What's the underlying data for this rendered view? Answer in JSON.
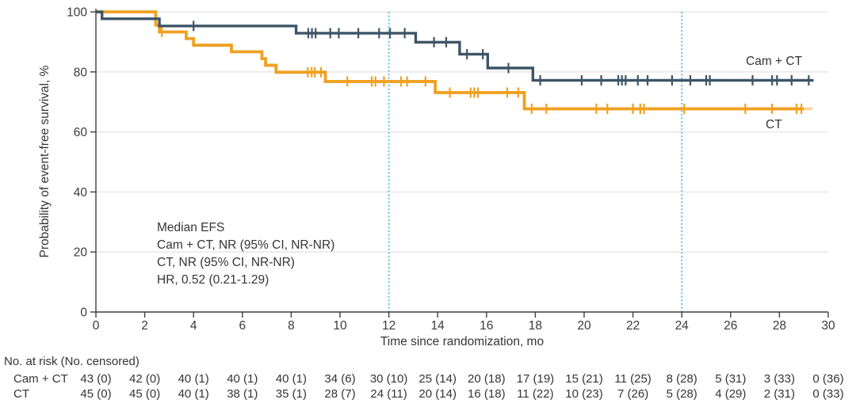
{
  "figure": {
    "curve_label_cam": "Cam + CT",
    "curve_label_ct": "CT"
  },
  "chart_data": {
    "type": "line",
    "subtype": "kaplan-meier-step",
    "title": "",
    "xlabel": "Time since randomization, mo",
    "ylabel": "Probability of event-free survival, %",
    "xlim": [
      0,
      30
    ],
    "ylim": [
      0,
      100
    ],
    "xticks": [
      0,
      2,
      4,
      6,
      8,
      10,
      12,
      14,
      16,
      18,
      20,
      22,
      24,
      26,
      28,
      30
    ],
    "yticks": [
      0,
      20,
      40,
      60,
      80,
      100
    ],
    "grid": "horizontal light lines at 20,40,60,80,100",
    "reference_lines_x": [
      12,
      24
    ],
    "colors": {
      "cam_ct": "#3D5567",
      "ct": "#F0A122",
      "reference": "#58C4E9",
      "grid": "#E4E4E4",
      "axis": "#3F3F3F",
      "text": "#353535"
    },
    "series": [
      {
        "name": "CT",
        "color": "#F0A122",
        "stroke_width": 3.8,
        "end_time": 29.0,
        "fade_tail_to": 29.35,
        "steps": [
          [
            0,
            100
          ],
          [
            2.45,
            95.6
          ],
          [
            2.6,
            93.3
          ],
          [
            3.7,
            91.1
          ],
          [
            4.0,
            88.9
          ],
          [
            5.55,
            86.7
          ],
          [
            6.8,
            84.4
          ],
          [
            6.95,
            82.2
          ],
          [
            7.38,
            79.9
          ],
          [
            9.4,
            76.8
          ],
          [
            13.9,
            73.1
          ],
          [
            17.55,
            67.7
          ]
        ],
        "censors": [
          [
            2.7,
            93.3
          ],
          [
            8.68,
            79.9
          ],
          [
            8.84,
            79.9
          ],
          [
            8.97,
            79.9
          ],
          [
            9.22,
            79.9
          ],
          [
            10.3,
            76.8
          ],
          [
            11.3,
            76.8
          ],
          [
            11.45,
            76.8
          ],
          [
            11.8,
            76.8
          ],
          [
            12.5,
            76.8
          ],
          [
            12.75,
            76.8
          ],
          [
            13.5,
            76.8
          ],
          [
            14.5,
            73.1
          ],
          [
            15.35,
            73.1
          ],
          [
            15.5,
            73.1
          ],
          [
            15.65,
            73.1
          ],
          [
            16.85,
            73.1
          ],
          [
            17.3,
            73.1
          ],
          [
            17.85,
            67.7
          ],
          [
            18.45,
            67.7
          ],
          [
            20.5,
            67.7
          ],
          [
            20.95,
            67.7
          ],
          [
            22.0,
            67.7
          ],
          [
            22.3,
            67.7
          ],
          [
            22.45,
            67.7
          ],
          [
            24.1,
            67.7
          ],
          [
            26.6,
            67.7
          ],
          [
            27.7,
            67.7
          ],
          [
            28.7,
            67.7
          ],
          [
            28.9,
            67.7
          ]
        ]
      },
      {
        "name": "Cam + CT",
        "color": "#3D5567",
        "stroke_width": 3.4,
        "end_time": 29.4,
        "fade_tail_to": null,
        "steps": [
          [
            0,
            100
          ],
          [
            0.25,
            97.7
          ],
          [
            2.6,
            95.3
          ],
          [
            8.2,
            92.9
          ],
          [
            13.1,
            89.9
          ],
          [
            14.9,
            85.9
          ],
          [
            16.05,
            81.3
          ],
          [
            17.9,
            77.2
          ]
        ],
        "censors": [
          [
            4.0,
            95.3
          ],
          [
            8.7,
            92.9
          ],
          [
            8.85,
            92.9
          ],
          [
            9.0,
            92.9
          ],
          [
            9.6,
            92.9
          ],
          [
            9.95,
            92.9
          ],
          [
            10.75,
            92.9
          ],
          [
            11.6,
            92.9
          ],
          [
            12.05,
            92.9
          ],
          [
            12.65,
            92.9
          ],
          [
            13.85,
            89.9
          ],
          [
            14.35,
            89.9
          ],
          [
            15.2,
            85.9
          ],
          [
            15.85,
            85.9
          ],
          [
            16.9,
            81.3
          ],
          [
            18.2,
            77.2
          ],
          [
            19.9,
            77.2
          ],
          [
            20.7,
            77.2
          ],
          [
            21.4,
            77.2
          ],
          [
            21.55,
            77.2
          ],
          [
            21.7,
            77.2
          ],
          [
            22.2,
            77.2
          ],
          [
            22.6,
            77.2
          ],
          [
            23.6,
            77.2
          ],
          [
            24.35,
            77.2
          ],
          [
            25.0,
            77.2
          ],
          [
            25.15,
            77.2
          ],
          [
            26.9,
            77.2
          ],
          [
            27.7,
            77.2
          ],
          [
            27.9,
            77.2
          ],
          [
            28.5,
            77.2
          ],
          [
            29.2,
            77.2
          ]
        ]
      }
    ],
    "annotation": {
      "lines": [
        "Median EFS",
        "Cam + CT, NR (95% CI, NR-NR)",
        "CT, NR (95% CI, NR-NR)",
        "HR, 0.52 (0.21-1.29)"
      ]
    }
  },
  "risk_table": {
    "header": "No. at risk (No. censored)",
    "times": [
      0,
      2,
      4,
      6,
      8,
      10,
      12,
      14,
      16,
      18,
      20,
      22,
      24,
      26,
      28,
      30
    ],
    "rows": [
      {
        "label": "Cam + CT",
        "values": [
          "43 (0)",
          "42 (0)",
          "40 (1)",
          "40 (1)",
          "40 (1)",
          "34 (6)",
          "30 (10)",
          "25 (14)",
          "20 (18)",
          "17 (19)",
          "15 (21)",
          "11 (25)",
          "8 (28)",
          "5 (31)",
          "3 (33)",
          "0 (36)"
        ]
      },
      {
        "label": "CT",
        "values": [
          "45 (0)",
          "45 (0)",
          "40 (1)",
          "38 (1)",
          "35 (1)",
          "28 (7)",
          "24 (11)",
          "20 (14)",
          "16 (18)",
          "11 (22)",
          "10 (23)",
          "7 (26)",
          "5 (28)",
          "4 (29)",
          "2 (31)",
          "0 (33)"
        ]
      }
    ]
  }
}
